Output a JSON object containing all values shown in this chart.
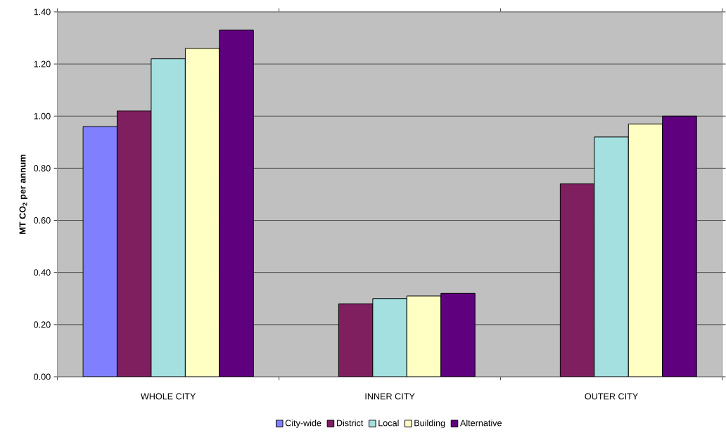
{
  "chart_data": {
    "type": "bar",
    "ylabel": "MT CO$_{2}$ per annum",
    "categories": [
      "WHOLE CITY",
      "INNER CITY",
      "OUTER CITY"
    ],
    "series": [
      {
        "name": "City-wide",
        "color": "#8080ff",
        "values": [
          0.96,
          null,
          null
        ]
      },
      {
        "name": "District",
        "color": "#7f1f5f",
        "values": [
          1.02,
          0.28,
          0.74
        ]
      },
      {
        "name": "Local",
        "color": "#a4e0e0",
        "values": [
          1.22,
          0.3,
          0.92
        ]
      },
      {
        "name": "Building",
        "color": "#ffffc4",
        "values": [
          1.26,
          0.31,
          0.97
        ]
      },
      {
        "name": "Alternative",
        "color": "#5f007f",
        "values": [
          1.33,
          0.32,
          1.0
        ]
      }
    ],
    "ylim": [
      0,
      1.4
    ],
    "yticks": [
      {
        "value": 0,
        "label": "0.00"
      },
      {
        "value": 0.2,
        "label": "0.20"
      },
      {
        "value": 0.4,
        "label": "0.40"
      },
      {
        "value": 0.6,
        "label": "0.60"
      },
      {
        "value": 0.8,
        "label": "0.80"
      },
      {
        "value": 1.0,
        "label": "1.00"
      },
      {
        "value": 1.2,
        "label": "1.20"
      },
      {
        "value": 1.4,
        "label": "1.40"
      }
    ],
    "grid": "y",
    "legend": "bottom"
  }
}
